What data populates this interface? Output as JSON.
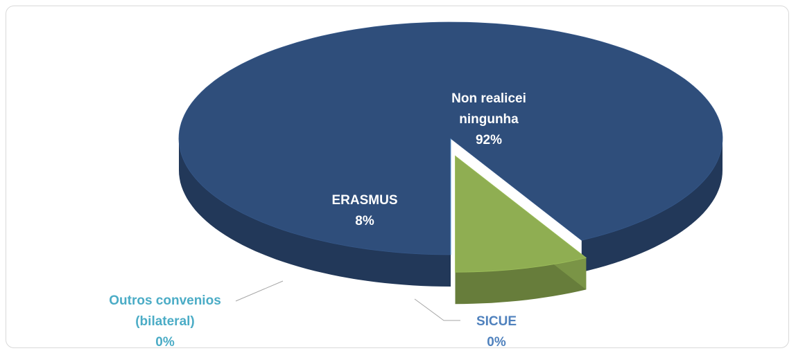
{
  "chart_data": {
    "type": "pie",
    "categories": [
      "Non realicei ningunha",
      "ERASMUS",
      "Outros convenios (bilateral)",
      "SICUE"
    ],
    "values": [
      92,
      8,
      0,
      0
    ],
    "value_labels": [
      "92%",
      "8%",
      "0%",
      "0%"
    ],
    "colors": [
      "#2f4e7b",
      "#8fae52",
      "#4bacc6",
      "#4f81bd"
    ],
    "label_colors": [
      "#ffffff",
      "#ffffff",
      "#4bacc6",
      "#4f81bd"
    ]
  }
}
